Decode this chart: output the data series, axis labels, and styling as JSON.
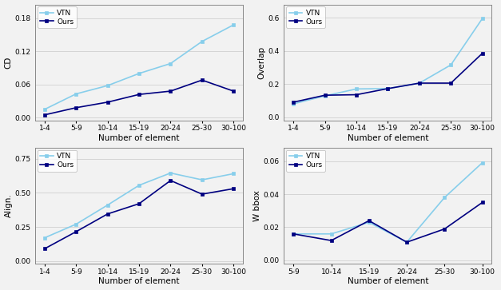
{
  "cd": {
    "x_labels": [
      "1-4",
      "5-9",
      "10-14",
      "15-19",
      "20-24",
      "25-30",
      "30-100"
    ],
    "vtn": [
      0.015,
      0.043,
      0.058,
      0.08,
      0.098,
      0.138,
      0.168
    ],
    "ours": [
      0.005,
      0.018,
      0.028,
      0.042,
      0.048,
      0.068,
      0.048
    ],
    "ylabel": "CD",
    "ylim": [
      -0.005,
      0.205
    ],
    "yticks": [
      0.0,
      0.06,
      0.12,
      0.18
    ]
  },
  "overlap": {
    "x_labels": [
      "1-4",
      "5-9",
      "10-14",
      "15-19",
      "20-24",
      "25-30",
      "30-100"
    ],
    "vtn": [
      0.08,
      0.128,
      0.17,
      0.172,
      0.205,
      0.315,
      0.595
    ],
    "ours": [
      0.09,
      0.132,
      0.135,
      0.172,
      0.205,
      0.205,
      0.385
    ],
    "ylabel": "Overlap",
    "ylim": [
      -0.02,
      0.68
    ],
    "yticks": [
      0.0,
      0.2,
      0.4,
      0.6
    ]
  },
  "align": {
    "x_labels": [
      "1-4",
      "5-9",
      "10-14",
      "15-19",
      "20-24",
      "25-30",
      "30-100"
    ],
    "vtn": [
      0.17,
      0.27,
      0.41,
      0.555,
      0.645,
      0.595,
      0.64
    ],
    "ours": [
      0.09,
      0.215,
      0.345,
      0.42,
      0.59,
      0.49,
      0.53
    ],
    "ylabel": "Align.",
    "ylim": [
      -0.02,
      0.83
    ],
    "yticks": [
      0.0,
      0.25,
      0.5,
      0.75
    ]
  },
  "wbbox": {
    "x_labels": [
      "5-9",
      "10-14",
      "15-19",
      "20-24",
      "25-30",
      "30-100"
    ],
    "vtn": [
      0.016,
      0.016,
      0.023,
      0.011,
      0.038,
      0.059
    ],
    "ours": [
      0.016,
      0.012,
      0.024,
      0.011,
      0.019,
      0.035
    ],
    "ylabel": "W bbox",
    "ylim": [
      -0.002,
      0.068
    ],
    "yticks": [
      0.0,
      0.02,
      0.04,
      0.06
    ]
  },
  "vtn_color": "#87CEEB",
  "ours_color": "#000080",
  "bg_color": "#f2f2f2",
  "xlabel": "Number of element",
  "legend_vtn": "VTN",
  "legend_ours": "Ours"
}
